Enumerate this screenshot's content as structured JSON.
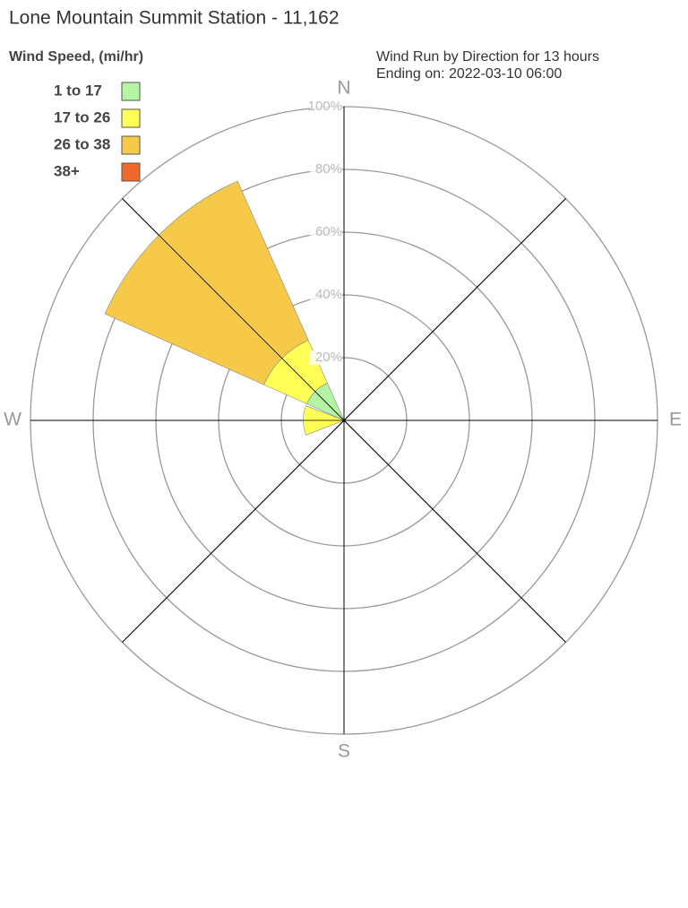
{
  "chart_data": {
    "type": "wind-rose",
    "title": "Lone Mountain Summit Station - 11,162",
    "legend_title": "Wind Speed, (mi/hr)",
    "subtitle": [
      "Wind Run by Direction for 13 hours",
      "Ending on: 2022-03-10 06:00"
    ],
    "categories": [
      "N",
      null,
      "E",
      null,
      "S",
      null,
      "W",
      null
    ],
    "series": [
      {
        "name": "1 to 17",
        "color": "#b3f5a3",
        "values": [
          0,
          0,
          0,
          0,
          0,
          0,
          0,
          13
        ]
      },
      {
        "name": "17 to 26",
        "color": "#ffff55",
        "values": [
          0,
          0,
          0,
          0,
          0,
          0,
          13,
          15
        ]
      },
      {
        "name": "26 to 38",
        "color": "#f6ca48",
        "values": [
          0,
          0,
          0,
          0,
          0,
          0,
          0,
          55.5
        ]
      },
      {
        "name": "38+",
        "color": "#ee6a2c",
        "values": [
          0,
          0,
          0,
          0,
          0,
          0,
          0,
          0
        ]
      }
    ],
    "rlim": [
      0,
      100
    ],
    "rticks": [
      {
        "value": 20,
        "label": "20%"
      },
      {
        "value": 40,
        "label": "40%"
      },
      {
        "value": 60,
        "label": "60%"
      },
      {
        "value": 80,
        "label": "80%"
      },
      {
        "value": 100,
        "label": "100%"
      }
    ]
  }
}
